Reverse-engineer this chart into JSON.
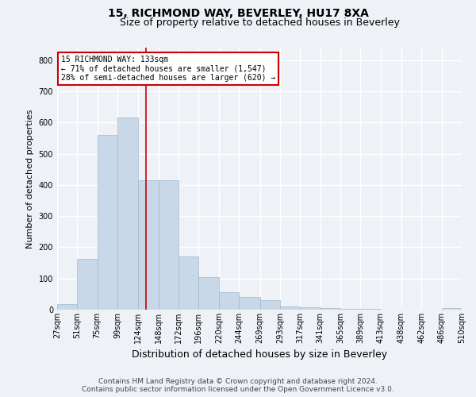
{
  "title1": "15, RICHMOND WAY, BEVERLEY, HU17 8XA",
  "title2": "Size of property relative to detached houses in Beverley",
  "xlabel": "Distribution of detached houses by size in Beverley",
  "ylabel": "Number of detached properties",
  "footnote": "Contains HM Land Registry data © Crown copyright and database right 2024.\nContains public sector information licensed under the Open Government Licence v3.0.",
  "bins": [
    "27sqm",
    "51sqm",
    "75sqm",
    "99sqm",
    "124sqm",
    "148sqm",
    "172sqm",
    "196sqm",
    "220sqm",
    "244sqm",
    "269sqm",
    "293sqm",
    "317sqm",
    "341sqm",
    "365sqm",
    "389sqm",
    "413sqm",
    "438sqm",
    "462sqm",
    "486sqm",
    "510sqm"
  ],
  "bin_edges": [
    27,
    51,
    75,
    99,
    124,
    148,
    172,
    196,
    220,
    244,
    269,
    293,
    317,
    341,
    365,
    389,
    413,
    438,
    462,
    486,
    510
  ],
  "values": [
    18,
    163,
    560,
    615,
    415,
    415,
    170,
    105,
    55,
    42,
    30,
    10,
    8,
    5,
    3,
    2,
    1,
    1,
    0,
    5
  ],
  "bar_color": "#c8d8e8",
  "bar_edge_color": "#a0b8cc",
  "vline_x": 133,
  "vline_color": "#cc0000",
  "annotation_line1": "15 RICHMOND WAY: 133sqm",
  "annotation_line2": "← 71% of detached houses are smaller (1,547)",
  "annotation_line3": "28% of semi-detached houses are larger (620) →",
  "annotation_box_color": "#ffffff",
  "annotation_box_edge": "#cc0000",
  "ylim": [
    0,
    840
  ],
  "yticks": [
    0,
    100,
    200,
    300,
    400,
    500,
    600,
    700,
    800
  ],
  "bg_color": "#eef2f7",
  "grid_color": "#ffffff",
  "title1_fontsize": 10,
  "title2_fontsize": 9,
  "xlabel_fontsize": 9,
  "ylabel_fontsize": 8,
  "tick_fontsize": 7,
  "footnote_fontsize": 6.5
}
